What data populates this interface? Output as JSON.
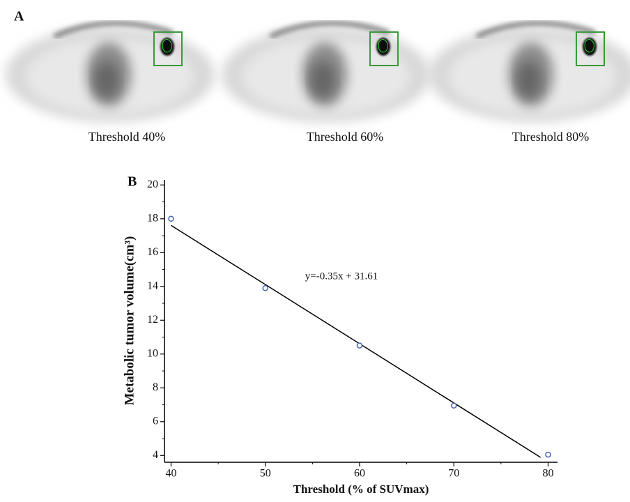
{
  "panel_a": {
    "label": "A",
    "captions": [
      "Threshold 40%",
      "Threshold 60%",
      "Threshold 80%"
    ]
  },
  "chart_data": {
    "type": "scatter",
    "panel_label": "B",
    "x_label": "Threshold (% of SUVmax)",
    "y_label": "Metabolic tumor volume(cm³)",
    "annotation": "y=-0.35x + 31.61",
    "x": [
      40,
      50,
      60,
      70,
      80
    ],
    "values": [
      18.0,
      13.9,
      10.5,
      6.95,
      4.05
    ],
    "color": "#4a64b0",
    "fit": {
      "slope": -0.35,
      "intercept": 31.61,
      "xlim": [
        40,
        79.2
      ]
    },
    "xlim": [
      39.3,
      81
    ],
    "xticks": [
      40,
      50,
      60,
      70,
      80
    ],
    "xminorticks": [
      45,
      55,
      65,
      75
    ],
    "ylim": [
      3.6,
      20.3
    ],
    "yticks": [
      4,
      6,
      8,
      10,
      12,
      14,
      16,
      18,
      20
    ],
    "yminorticks": [
      5,
      7,
      9,
      11,
      13,
      15,
      17,
      19
    ]
  }
}
